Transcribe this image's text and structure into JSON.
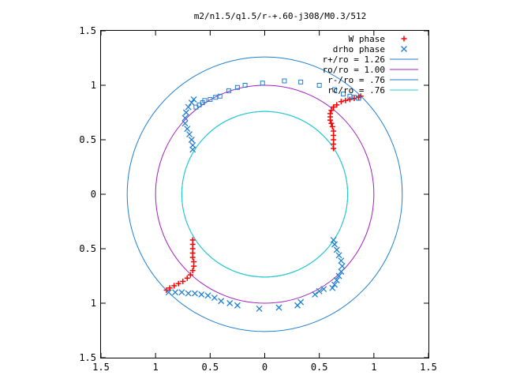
{
  "chart_data": {
    "type": "scatter",
    "title": "m2/n1.5/q1.5/r-+.60-j308/M0.3/512",
    "xlabel": "",
    "ylabel": "",
    "xlim": [
      -1.5,
      1.5
    ],
    "ylim": [
      -1.5,
      1.5
    ],
    "x_ticks": [
      -1.5,
      -1,
      -0.5,
      0,
      0.5,
      1,
      1.5
    ],
    "x_tick_labels": [
      "1.5",
      "1",
      "0.5",
      "0",
      "0.5",
      "1",
      "1.5"
    ],
    "y_ticks": [
      1.5,
      1,
      0.5,
      0,
      -0.5,
      -1,
      -1.5
    ],
    "y_tick_labels": [
      "1.5",
      "1",
      "0.5",
      "0",
      "0.5",
      "1",
      "1.5"
    ],
    "grid": false,
    "legend_position": "top-right",
    "circles": [
      {
        "name": "r+/ro = 1.26",
        "radius": 1.26,
        "color": "#1f7fd2"
      },
      {
        "name": "ro/ro = 1.00",
        "radius": 1.0,
        "color": "#a020c0"
      },
      {
        "name": "r-/ro = .76",
        "radius": 0.76,
        "color": "#1f7fd2"
      },
      {
        "name": "rc/ro = .76",
        "radius": 0.76,
        "color": "#20d0d0"
      }
    ],
    "series": [
      {
        "name": "W phase",
        "marker": "plus",
        "color": "#ff0000",
        "points": [
          [
            0.63,
            0.42
          ],
          [
            0.63,
            0.46
          ],
          [
            0.63,
            0.5
          ],
          [
            0.63,
            0.54
          ],
          [
            0.63,
            0.58
          ],
          [
            0.62,
            0.62
          ],
          [
            0.61,
            0.65
          ],
          [
            0.6,
            0.68
          ],
          [
            0.6,
            0.71
          ],
          [
            0.6,
            0.74
          ],
          [
            0.61,
            0.77
          ],
          [
            0.63,
            0.8
          ],
          [
            0.66,
            0.82
          ],
          [
            0.7,
            0.85
          ],
          [
            0.74,
            0.86
          ],
          [
            0.78,
            0.87
          ],
          [
            0.82,
            0.88
          ],
          [
            0.86,
            0.89
          ],
          [
            0.88,
            0.9
          ],
          [
            -0.66,
            -0.42
          ],
          [
            -0.66,
            -0.46
          ],
          [
            -0.66,
            -0.5
          ],
          [
            -0.66,
            -0.54
          ],
          [
            -0.66,
            -0.58
          ],
          [
            -0.65,
            -0.62
          ],
          [
            -0.65,
            -0.66
          ],
          [
            -0.66,
            -0.7
          ],
          [
            -0.68,
            -0.74
          ],
          [
            -0.71,
            -0.77
          ],
          [
            -0.75,
            -0.8
          ],
          [
            -0.79,
            -0.82
          ],
          [
            -0.83,
            -0.84
          ],
          [
            -0.87,
            -0.86
          ],
          [
            -0.9,
            -0.88
          ]
        ]
      },
      {
        "name": "drho phase",
        "marker": "cross",
        "color": "#1f7fd2",
        "points": [
          [
            -0.66,
            0.41
          ],
          [
            -0.66,
            0.45
          ],
          [
            -0.67,
            0.5
          ],
          [
            -0.69,
            0.55
          ],
          [
            -0.71,
            0.6
          ],
          [
            -0.73,
            0.65
          ],
          [
            -0.73,
            0.7
          ],
          [
            -0.72,
            0.75
          ],
          [
            -0.7,
            0.8
          ],
          [
            -0.67,
            0.84
          ],
          [
            -0.65,
            0.87
          ],
          [
            0.63,
            -0.42
          ],
          [
            0.64,
            -0.46
          ],
          [
            0.66,
            -0.51
          ],
          [
            0.68,
            -0.56
          ],
          [
            0.7,
            -0.61
          ],
          [
            0.71,
            -0.66
          ],
          [
            0.7,
            -0.71
          ],
          [
            0.68,
            -0.75
          ],
          [
            0.66,
            -0.79
          ],
          [
            0.64,
            -0.83
          ],
          [
            0.62,
            -0.86
          ],
          [
            -0.88,
            -0.9
          ],
          [
            -0.82,
            -0.9
          ],
          [
            -0.76,
            -0.9
          ],
          [
            -0.7,
            -0.91
          ],
          [
            -0.64,
            -0.91
          ],
          [
            -0.58,
            -0.92
          ],
          [
            -0.52,
            -0.93
          ],
          [
            -0.46,
            -0.95
          ],
          [
            -0.4,
            -0.98
          ],
          [
            -0.32,
            -1.0
          ],
          [
            -0.25,
            -1.02
          ],
          [
            -0.05,
            -1.05
          ],
          [
            0.13,
            -1.04
          ],
          [
            0.3,
            -1.02
          ],
          [
            0.33,
            -0.99
          ],
          [
            0.46,
            -0.92
          ],
          [
            0.5,
            -0.89
          ],
          [
            0.54,
            -0.87
          ]
        ]
      },
      {
        "name": "",
        "marker": "square",
        "color": "#1f7fd2",
        "points": [
          [
            -0.63,
            0.8
          ],
          [
            -0.6,
            0.82
          ],
          [
            -0.57,
            0.84
          ],
          [
            -0.55,
            0.86
          ],
          [
            -0.5,
            0.87
          ],
          [
            -0.45,
            0.89
          ],
          [
            -0.41,
            0.9
          ],
          [
            -0.33,
            0.95
          ],
          [
            -0.25,
            0.98
          ],
          [
            -0.18,
            1.0
          ],
          [
            -0.02,
            1.02
          ],
          [
            0.18,
            1.04
          ],
          [
            0.33,
            1.03
          ],
          [
            0.5,
            1.0
          ],
          [
            0.64,
            0.96
          ],
          [
            0.72,
            0.92
          ],
          [
            0.78,
            0.9
          ],
          [
            0.82,
            0.89
          ],
          [
            0.86,
            0.88
          ]
        ]
      }
    ]
  }
}
